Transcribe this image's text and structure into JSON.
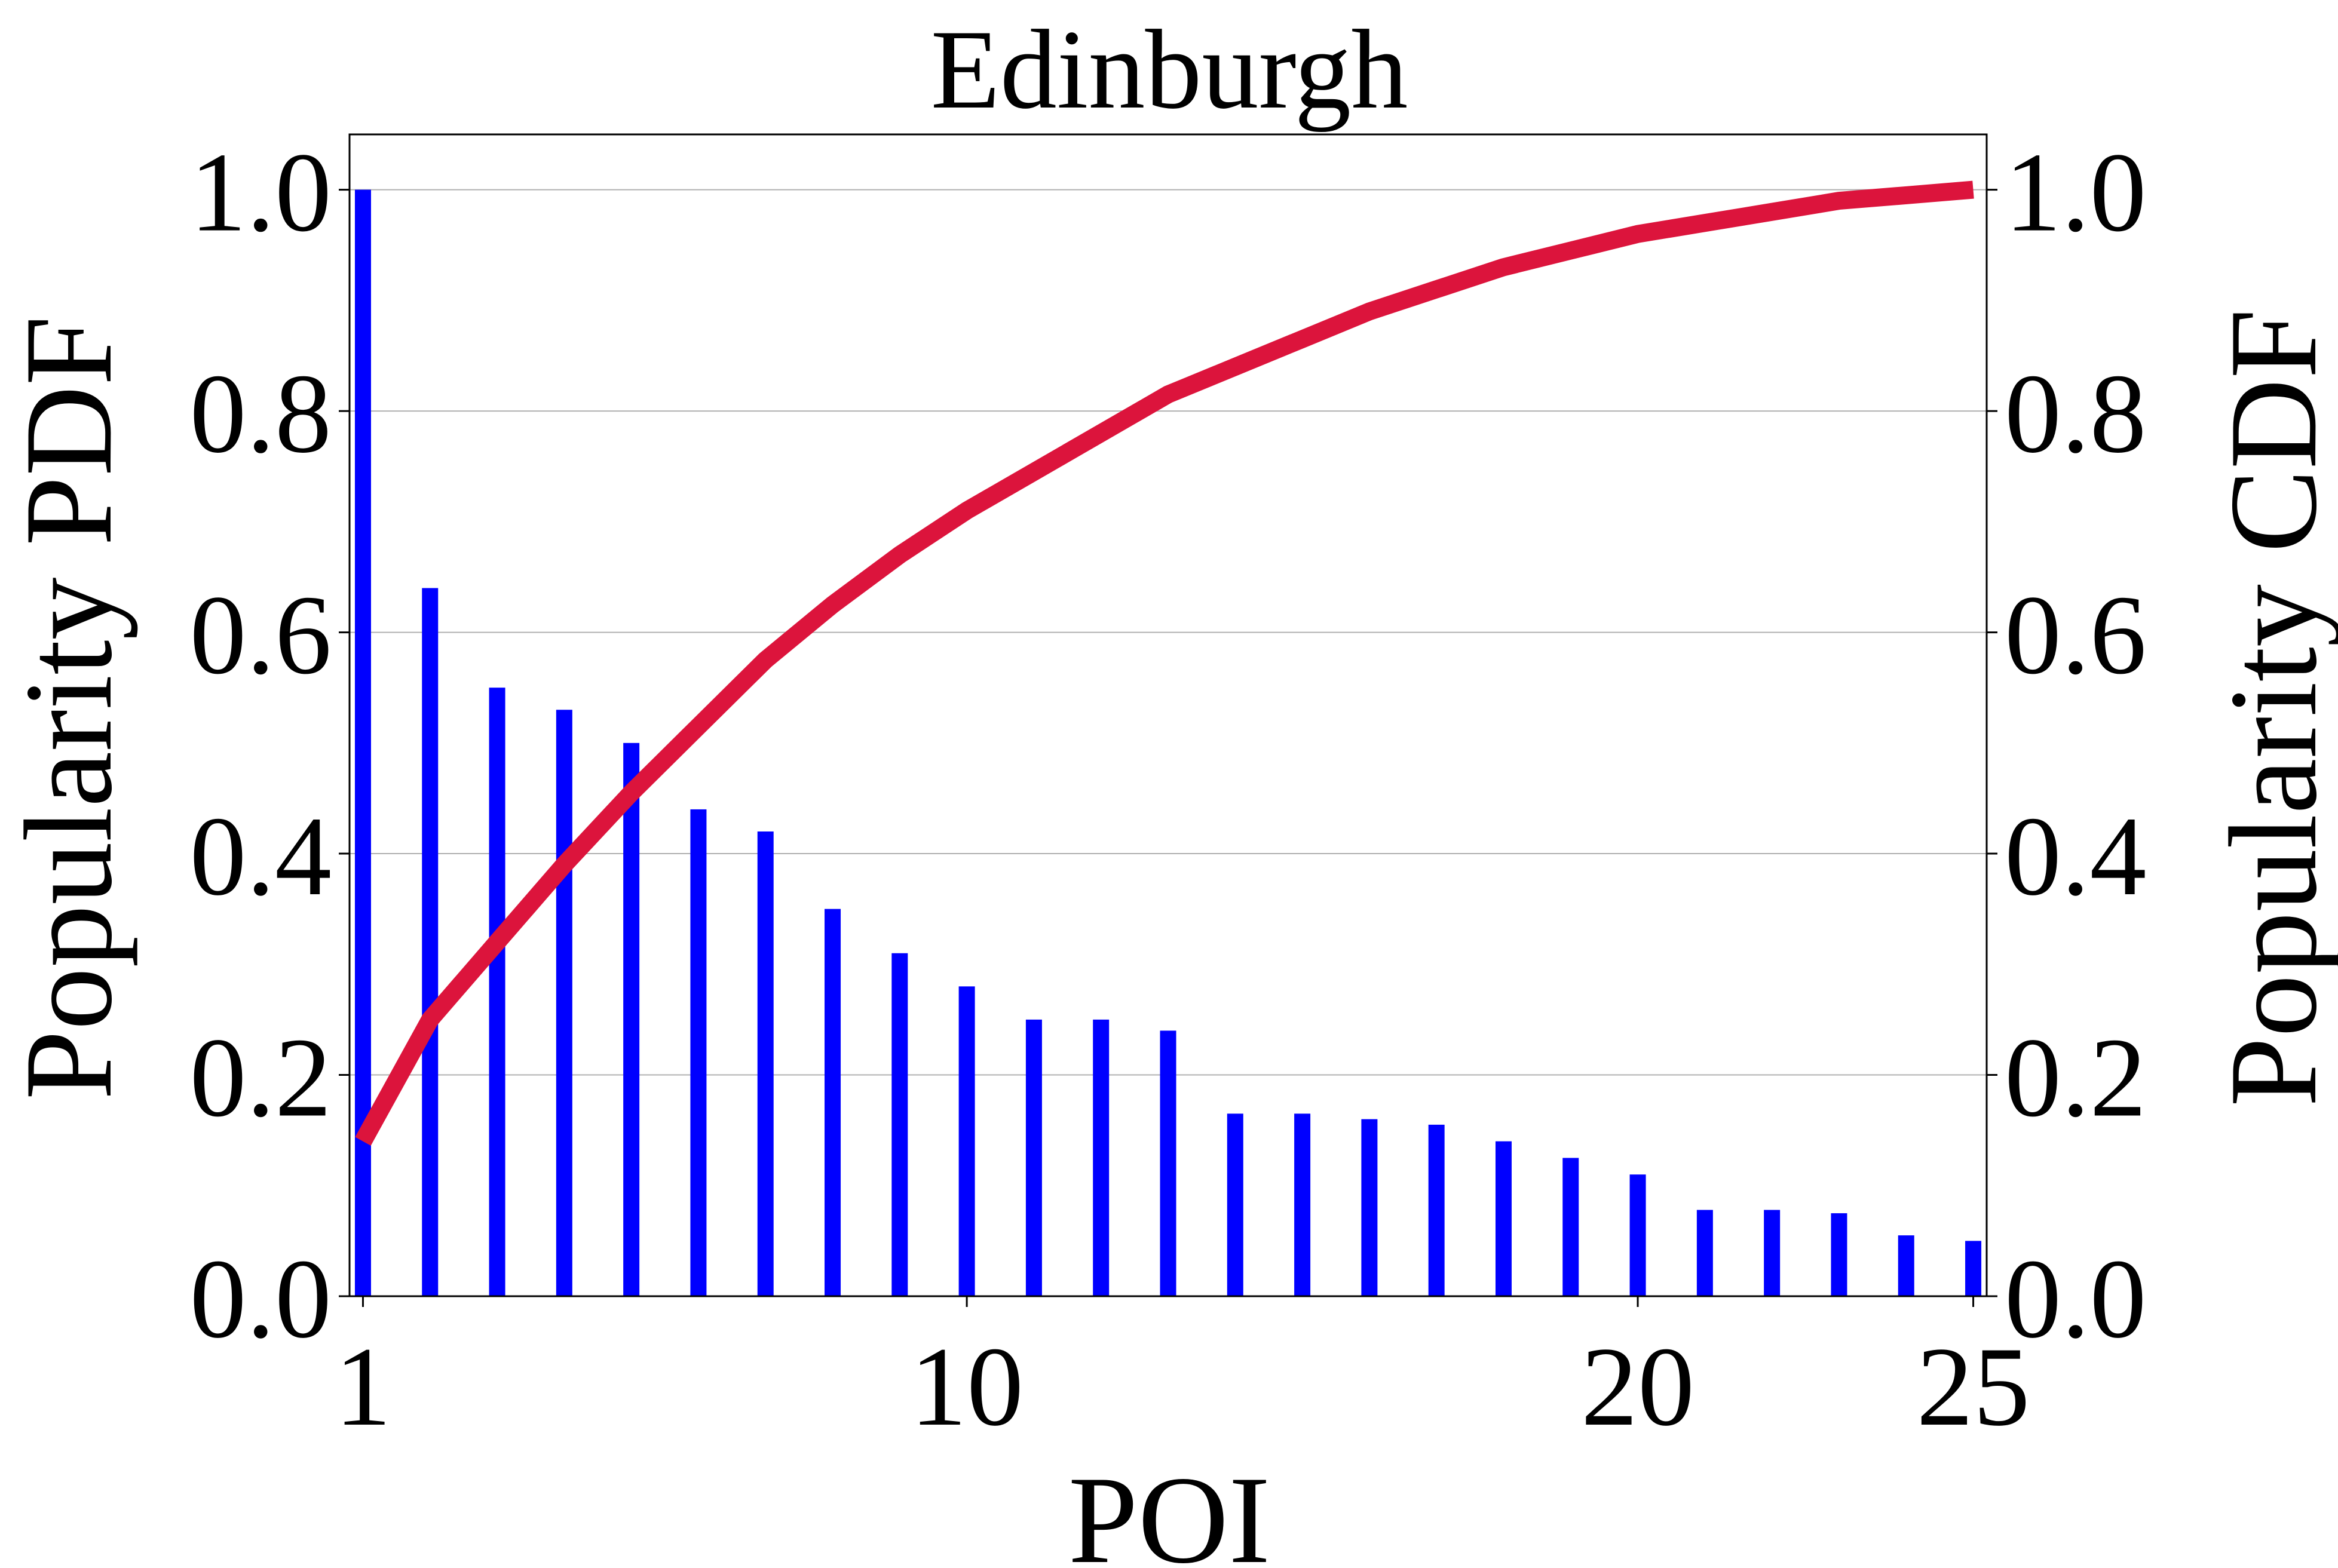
{
  "chart_data": {
    "type": "bar",
    "title": "Edinburgh",
    "xlabel": "POI",
    "ylabel_left": "Popularity PDF",
    "ylabel_right": "Popularity CDF",
    "x_ticks": [
      1,
      10,
      20,
      25
    ],
    "y_ticks_left": [
      "0.0",
      "0.2",
      "0.4",
      "0.6",
      "0.8",
      "1.0"
    ],
    "y_ticks_right": [
      "0.0",
      "0.2",
      "0.4",
      "0.6",
      "0.8",
      "1.0"
    ],
    "xlim": [
      0.8,
      25.2
    ],
    "ylim_left": [
      0,
      1.05
    ],
    "ylim_right": [
      0,
      1.05
    ],
    "grid": "horizontal",
    "x": [
      1,
      2,
      3,
      4,
      5,
      6,
      7,
      8,
      9,
      10,
      11,
      12,
      13,
      14,
      15,
      16,
      17,
      18,
      19,
      20,
      21,
      22,
      23,
      24,
      25
    ],
    "series": [
      {
        "type": "bar",
        "axis": "left",
        "color": "#0000ff",
        "values": [
          1.0,
          0.64,
          0.55,
          0.53,
          0.5,
          0.44,
          0.42,
          0.35,
          0.31,
          0.28,
          0.25,
          0.25,
          0.24,
          0.165,
          0.165,
          0.16,
          0.155,
          0.14,
          0.125,
          0.11,
          0.078,
          0.078,
          0.075,
          0.055,
          0.05
        ]
      },
      {
        "type": "line",
        "axis": "right",
        "color": "#dc143c",
        "values": [
          0.14,
          0.25,
          0.32,
          0.39,
          0.455,
          0.515,
          0.575,
          0.625,
          0.67,
          0.71,
          0.745,
          0.78,
          0.815,
          0.84,
          0.865,
          0.89,
          0.91,
          0.93,
          0.945,
          0.96,
          0.97,
          0.98,
          0.99,
          0.995,
          1.0
        ]
      }
    ]
  }
}
